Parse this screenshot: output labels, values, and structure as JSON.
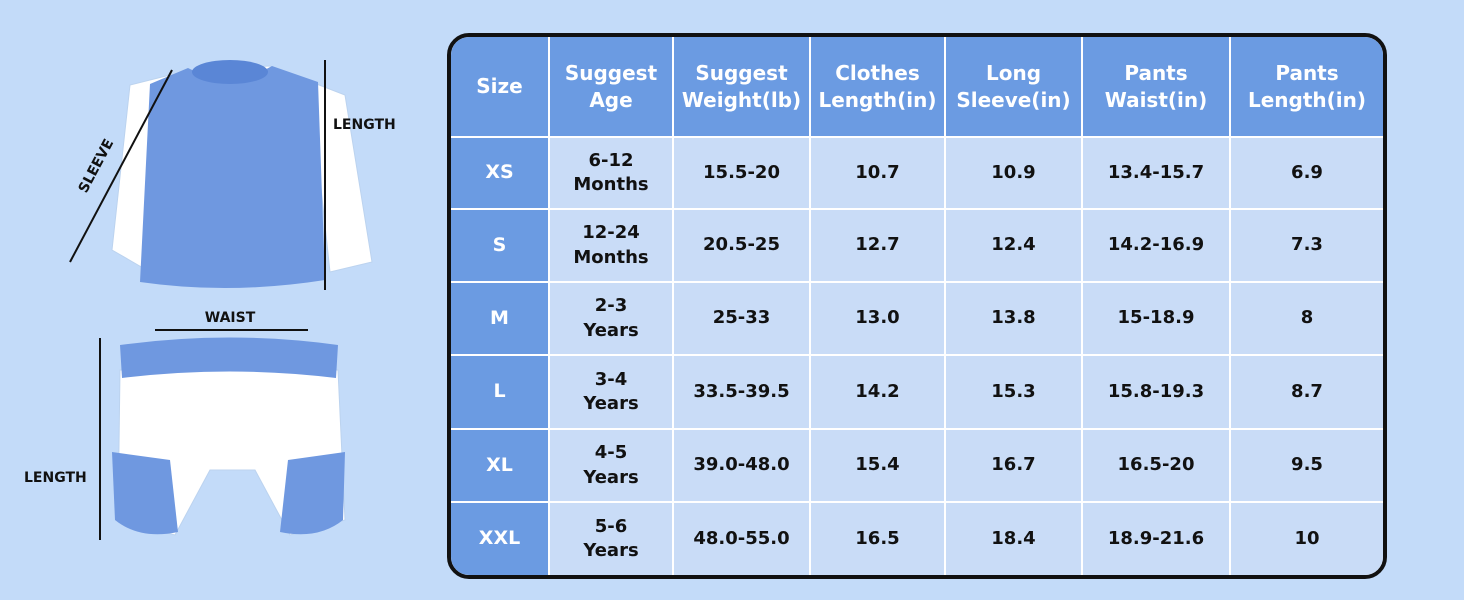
{
  "labels": {
    "sleeve": "SLEEVE",
    "shirt_length": "LENGTH",
    "waist": "WAIST",
    "shorts_length": "LENGTH"
  },
  "table": {
    "header": [
      "Size",
      "Suggest\nAge",
      "Suggest\nWeight(lb)",
      "Clothes\nLength(in)",
      "Long\nSleeve(in)",
      "Pants\nWaist(in)",
      "Pants\nLength(in)"
    ],
    "rows": [
      [
        "XS",
        "6-12\nMonths",
        "15.5-20",
        "10.7",
        "10.9",
        "13.4-15.7",
        "6.9"
      ],
      [
        "S",
        "12-24\nMonths",
        "20.5-25",
        "12.7",
        "12.4",
        "14.2-16.9",
        "7.3"
      ],
      [
        "M",
        "2-3\nYears",
        "25-33",
        "13.0",
        "13.8",
        "15-18.9",
        "8"
      ],
      [
        "L",
        "3-4\nYears",
        "33.5-39.5",
        "14.2",
        "15.3",
        "15.8-19.3",
        "8.7"
      ],
      [
        "XL",
        "4-5\nYears",
        "39.0-48.0",
        "15.4",
        "16.7",
        "16.5-20",
        "9.5"
      ],
      [
        "XXL",
        "5-6\nYears",
        "48.0-55.0",
        "16.5",
        "18.4",
        "18.9-21.6",
        "10"
      ]
    ]
  }
}
